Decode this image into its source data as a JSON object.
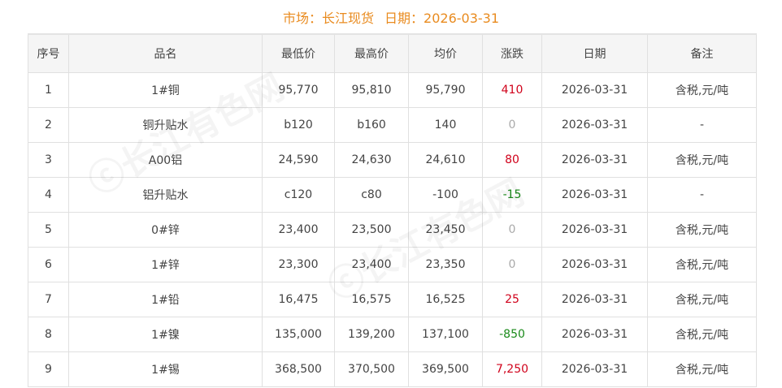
{
  "header": {
    "market_label": "市场：长江现货",
    "date_label": "日期：2026-03-31"
  },
  "watermark": "长江有色网",
  "colors": {
    "title": "#e98b1f",
    "up": "#d0021b",
    "down": "#1a8a1a",
    "flat": "#aaaaaa"
  },
  "table": {
    "columns": [
      "序号",
      "品名",
      "最低价",
      "最高价",
      "均价",
      "涨跌",
      "日期",
      "备注"
    ],
    "rows": [
      {
        "no": "1",
        "name": "1#铜",
        "low": "95,770",
        "high": "95,810",
        "avg": "95,790",
        "change": "410",
        "dir": "up",
        "date": "2026-03-31",
        "note": "含税,元/吨"
      },
      {
        "no": "2",
        "name": "铜升贴水",
        "low": "b120",
        "high": "b160",
        "avg": "140",
        "change": "0",
        "dir": "flat",
        "date": "2026-03-31",
        "note": "-"
      },
      {
        "no": "3",
        "name": "A00铝",
        "low": "24,590",
        "high": "24,630",
        "avg": "24,610",
        "change": "80",
        "dir": "up",
        "date": "2026-03-31",
        "note": "含税,元/吨"
      },
      {
        "no": "4",
        "name": "铝升贴水",
        "low": "c120",
        "high": "c80",
        "avg": "-100",
        "change": "-15",
        "dir": "down",
        "date": "2026-03-31",
        "note": "-"
      },
      {
        "no": "5",
        "name": "0#锌",
        "low": "23,400",
        "high": "23,500",
        "avg": "23,450",
        "change": "0",
        "dir": "flat",
        "date": "2026-03-31",
        "note": "含税,元/吨"
      },
      {
        "no": "6",
        "name": "1#锌",
        "low": "23,300",
        "high": "23,400",
        "avg": "23,350",
        "change": "0",
        "dir": "flat",
        "date": "2026-03-31",
        "note": "含税,元/吨"
      },
      {
        "no": "7",
        "name": "1#铅",
        "low": "16,475",
        "high": "16,575",
        "avg": "16,525",
        "change": "25",
        "dir": "up",
        "date": "2026-03-31",
        "note": "含税,元/吨"
      },
      {
        "no": "8",
        "name": "1#镍",
        "low": "135,000",
        "high": "139,200",
        "avg": "137,100",
        "change": "-850",
        "dir": "down",
        "date": "2026-03-31",
        "note": "含税,元/吨"
      },
      {
        "no": "9",
        "name": "1#锡",
        "low": "368,500",
        "high": "370,500",
        "avg": "369,500",
        "change": "7,250",
        "dir": "up",
        "date": "2026-03-31",
        "note": "含税,元/吨"
      }
    ]
  }
}
